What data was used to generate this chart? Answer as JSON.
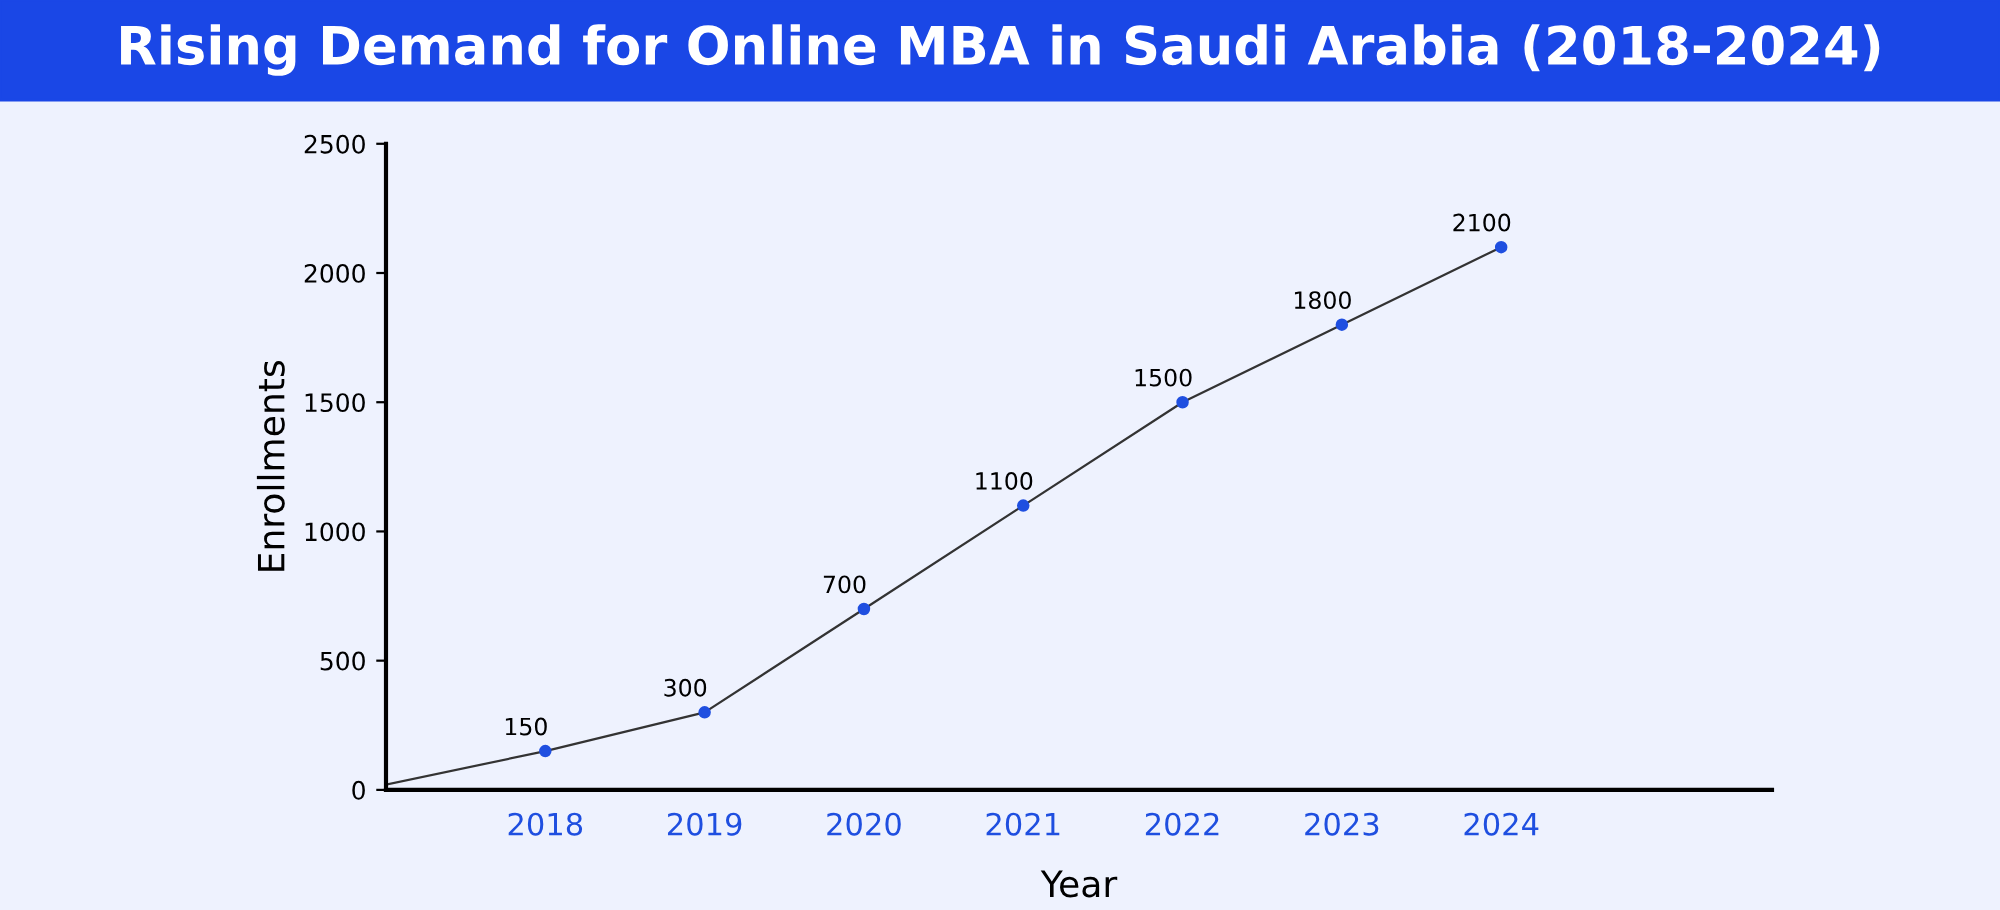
{
  "chart_data": {
    "type": "line",
    "title": "Rising Demand for Online MBA in Saudi Arabia (2018-2024)",
    "xlabel": "Year",
    "ylabel": "Enrollments",
    "categories": [
      null,
      "2018",
      "2019",
      "2020",
      "2021",
      "2022",
      "2023",
      "2024",
      null
    ],
    "series": [
      {
        "color": "#333333",
        "values": [
          20,
          150,
          300,
          700,
          1100,
          1500,
          1800,
          2100,
          null
        ],
        "value_labels": [
          null,
          "150",
          "300",
          "700",
          "1100",
          "1500",
          "1800",
          "2100",
          null
        ]
      }
    ],
    "ylim": [
      0,
      2500
    ],
    "yticks": [
      0,
      500,
      1000,
      1500,
      2000,
      2500
    ],
    "grid": false,
    "legend": false,
    "marker": "circle",
    "line_style": "solid"
  }
}
